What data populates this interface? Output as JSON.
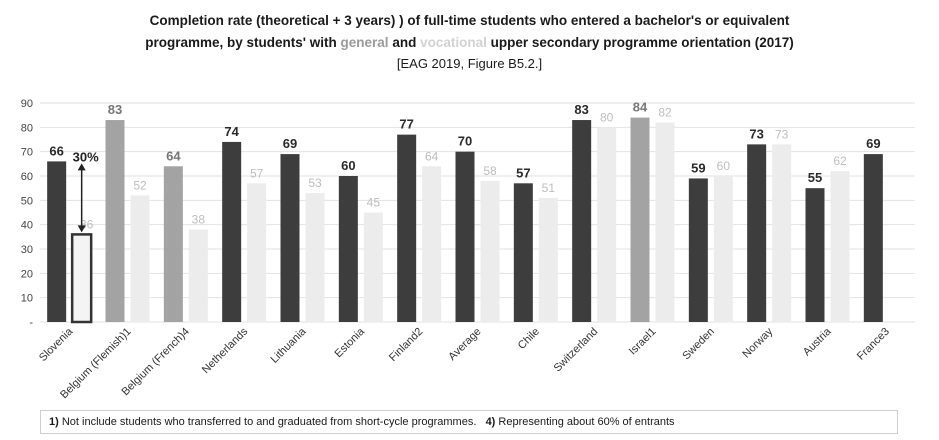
{
  "title": {
    "line1": "Completion rate (theoretical + 3 years) ) of full-time students who entered a bachelor's or equivalent",
    "line2_prefix": "programme, by students' with",
    "general_word": "general",
    "and_word": "and",
    "vocational_word": "vocational",
    "line2_suffix": "upper secondary programme orientation (2017)",
    "reference": "[EAG 2019, Figure B5.2.]"
  },
  "annotation": {
    "label": "30%"
  },
  "footnotes": {
    "n1_marker": "1)",
    "n1_text": "Not include students who transferred to and graduated from short-cycle programmes.",
    "n4_marker": "4)",
    "n4_text": "Representing about 60% of entrants"
  },
  "colors": {
    "general": "#3d3d3d",
    "general_alt": "#a3a3a3",
    "vocational": "#ececec",
    "vocational_label": "#bdbdbd",
    "general_label": "#2a2a2a",
    "general_alt_label": "#777777",
    "grid": "#e2e2e2",
    "highlight_box": "#333333"
  },
  "chart_data": {
    "type": "bar",
    "title": "Completion rate (theoretical + 3 years) ) of full-time students who entered a bachelor's or equivalent programme, by students' with general and vocational upper secondary programme orientation (2017)",
    "categories": [
      "Slovenia",
      "Belgium (Flemish)1",
      "Belgium (French)4",
      "Netherlands",
      "Lithuania",
      "Estonia",
      "Finland2",
      "Average",
      "Chile",
      "Switzerland",
      "Israel1",
      "Sweden",
      "Norway",
      "Austria",
      "France3"
    ],
    "series": [
      {
        "name": "general",
        "values": [
          66,
          83,
          64,
          74,
          69,
          60,
          77,
          70,
          57,
          83,
          84,
          59,
          73,
          55,
          69
        ]
      },
      {
        "name": "vocational",
        "values": [
          36,
          52,
          38,
          57,
          53,
          45,
          64,
          58,
          51,
          80,
          82,
          60,
          73,
          62,
          null
        ]
      }
    ],
    "general_shade": [
      "dark",
      "light",
      "light",
      "dark",
      "dark",
      "dark",
      "dark",
      "dark",
      "dark",
      "dark",
      "light",
      "dark",
      "dark",
      "dark",
      "dark"
    ],
    "y_ticks": [
      "-",
      "10",
      "20",
      "30",
      "40",
      "50",
      "60",
      "70",
      "80",
      "90"
    ],
    "ylim": [
      0,
      90
    ],
    "grid": true,
    "highlight": {
      "category": "Slovenia",
      "series": "vocational",
      "gap_label": "30%"
    }
  }
}
